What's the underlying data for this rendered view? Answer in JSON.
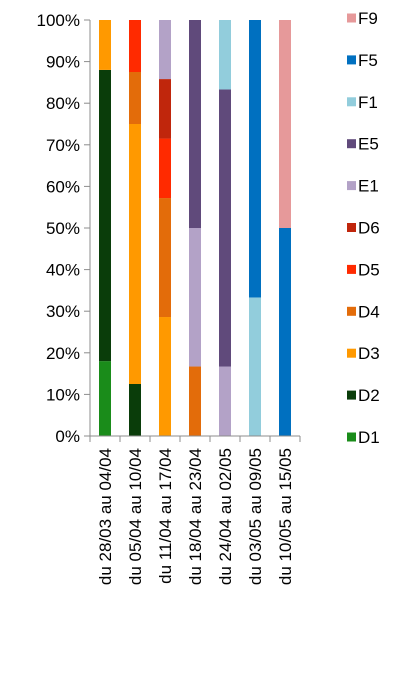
{
  "chart_data": {
    "type": "bar",
    "stacked": true,
    "percent": true,
    "title": "",
    "xlabel": "",
    "ylabel": "",
    "ylim": [
      0,
      100
    ],
    "yticks": [
      "0%",
      "10%",
      "20%",
      "30%",
      "40%",
      "50%",
      "60%",
      "70%",
      "80%",
      "90%",
      "100%"
    ],
    "grid": false,
    "legend_position": "right",
    "categories": [
      "du 28/03 au 04/04",
      "du 05/04 au 10/04",
      "du 11/04 au 17/04",
      "du 18/04 au 23/04",
      "du 24/04 au 02/05",
      "du 03/05 au 09/05",
      "du 10/05 au 15/05"
    ],
    "series": [
      {
        "name": "D1",
        "color": "#1a8c1a",
        "values": [
          18,
          0,
          0,
          0,
          0,
          0,
          0
        ]
      },
      {
        "name": "D2",
        "color": "#0a3d0a",
        "values": [
          70,
          12.5,
          0,
          0,
          0,
          0,
          0
        ]
      },
      {
        "name": "D3",
        "color": "#ff9900",
        "values": [
          12,
          62.5,
          28.6,
          0,
          0,
          0,
          0
        ]
      },
      {
        "name": "D4",
        "color": "#e36c0a",
        "values": [
          0,
          12.5,
          28.6,
          16.7,
          0,
          0,
          0
        ]
      },
      {
        "name": "D5",
        "color": "#ff2a00",
        "values": [
          0,
          12.5,
          14.3,
          0,
          0,
          0,
          0
        ]
      },
      {
        "name": "D6",
        "color": "#c0260c",
        "values": [
          0,
          0,
          14.3,
          0,
          0,
          0,
          0
        ]
      },
      {
        "name": "E1",
        "color": "#b3a2c7",
        "values": [
          0,
          0,
          14.2,
          33.3,
          16.7,
          0,
          0
        ]
      },
      {
        "name": "E5",
        "color": "#604a7b",
        "values": [
          0,
          0,
          0,
          50,
          66.6,
          0,
          0
        ]
      },
      {
        "name": "F1",
        "color": "#92cddc",
        "values": [
          0,
          0,
          0,
          0,
          16.7,
          33.3,
          0
        ]
      },
      {
        "name": "F5",
        "color": "#0070c0",
        "values": [
          0,
          0,
          0,
          0,
          0,
          66.7,
          50
        ]
      },
      {
        "name": "F9",
        "color": "#e6999a",
        "values": [
          0,
          0,
          0,
          0,
          0,
          0,
          50
        ]
      }
    ]
  }
}
